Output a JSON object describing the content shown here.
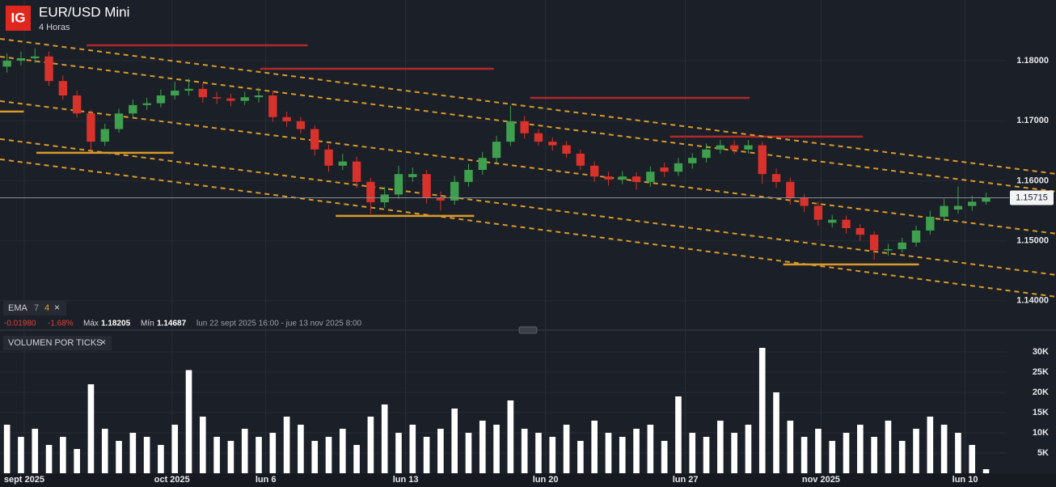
{
  "header": {
    "logo": "IG",
    "title": "EUR/USD Mini",
    "interval": "4 Horas"
  },
  "indicator": {
    "name": "EMA",
    "param1": "7",
    "param2": "4",
    "close": "×"
  },
  "stats": {
    "change": "-0.01980",
    "change_pct": "-1.68%",
    "max_label": "Máx",
    "max": "1.18205",
    "min_label": "Mín",
    "min": "1.14687",
    "range": "lun 22 sept 2025 16:00 - jue 13 nov 2025 8:00"
  },
  "volume_panel": {
    "title": "VOLUMEN POR TICKS",
    "close": "×"
  },
  "chart_data": [
    {
      "type": "candlestick",
      "x": [
        0,
        1,
        2,
        3,
        4,
        5,
        6,
        7,
        8,
        9,
        10,
        11,
        12,
        13,
        14,
        15,
        16,
        17,
        18,
        19,
        20,
        21,
        22,
        23,
        24,
        25,
        26,
        27,
        28,
        29,
        30,
        31,
        32,
        33,
        34,
        35,
        36,
        37,
        38,
        39,
        40,
        41,
        42,
        43,
        44,
        45,
        46,
        47,
        48,
        49,
        50,
        51,
        52,
        53,
        54,
        55,
        56,
        57,
        58,
        59,
        60,
        61,
        62,
        63,
        64,
        65,
        66,
        67,
        68,
        69,
        70
      ],
      "open": [
        1.179,
        1.18,
        1.1804,
        1.1807,
        1.1766,
        1.1742,
        1.1712,
        1.1665,
        1.1686,
        1.1712,
        1.1726,
        1.1729,
        1.1742,
        1.175,
        1.1753,
        1.1739,
        1.1737,
        1.1733,
        1.1739,
        1.1742,
        1.1706,
        1.1699,
        1.1686,
        1.1652,
        1.1625,
        1.1632,
        1.1598,
        1.1564,
        1.1577,
        1.1606,
        1.1611,
        1.1571,
        1.1567,
        1.1598,
        1.1618,
        1.1638,
        1.1665,
        1.1699,
        1.1679,
        1.1665,
        1.1659,
        1.1645,
        1.1625,
        1.1607,
        1.1602,
        1.1607,
        1.1598,
        1.1622,
        1.1615,
        1.1629,
        1.1638,
        1.1652,
        1.1659,
        1.1652,
        1.1659,
        1.1611,
        1.1598,
        1.1571,
        1.1558,
        1.153,
        1.1535,
        1.1521,
        1.151,
        1.1484,
        1.1486,
        1.1497,
        1.1517,
        1.154,
        1.1552,
        1.1558,
        1.1565
      ],
      "high": [
        1.1812,
        1.1815,
        1.18205,
        1.1815,
        1.1775,
        1.175,
        1.1718,
        1.1695,
        1.172,
        1.1735,
        1.1738,
        1.1752,
        1.1765,
        1.177,
        1.1762,
        1.1748,
        1.1745,
        1.1748,
        1.1755,
        1.175,
        1.1715,
        1.1706,
        1.1692,
        1.166,
        1.1645,
        1.164,
        1.1605,
        1.159,
        1.1625,
        1.1622,
        1.1618,
        1.1582,
        1.1608,
        1.1628,
        1.1648,
        1.1675,
        1.1725,
        1.1708,
        1.1686,
        1.1672,
        1.1666,
        1.1652,
        1.1632,
        1.1615,
        1.1616,
        1.1614,
        1.1624,
        1.163,
        1.1638,
        1.1646,
        1.1662,
        1.1668,
        1.1667,
        1.1668,
        1.1665,
        1.162,
        1.1605,
        1.1578,
        1.1565,
        1.1543,
        1.1542,
        1.1528,
        1.1516,
        1.1495,
        1.1505,
        1.1525,
        1.155,
        1.157,
        1.159,
        1.1575,
        1.158
      ],
      "low": [
        1.178,
        1.1792,
        1.1796,
        1.1758,
        1.1735,
        1.1705,
        1.165,
        1.1658,
        1.168,
        1.1705,
        1.1718,
        1.1722,
        1.1735,
        1.1742,
        1.173,
        1.1728,
        1.1724,
        1.1726,
        1.173,
        1.1698,
        1.169,
        1.1678,
        1.1642,
        1.1615,
        1.1618,
        1.1588,
        1.1545,
        1.1555,
        1.157,
        1.1598,
        1.1562,
        1.155,
        1.156,
        1.159,
        1.161,
        1.163,
        1.1658,
        1.167,
        1.1658,
        1.165,
        1.1638,
        1.1618,
        1.1598,
        1.1592,
        1.1594,
        1.1585,
        1.159,
        1.1606,
        1.1608,
        1.162,
        1.163,
        1.1645,
        1.1644,
        1.1645,
        1.1595,
        1.1588,
        1.156,
        1.1548,
        1.1525,
        1.1522,
        1.1512,
        1.15,
        1.14687,
        1.1475,
        1.148,
        1.149,
        1.151,
        1.1532,
        1.1545,
        1.155,
        1.156
      ],
      "close": [
        1.18,
        1.1804,
        1.1807,
        1.1766,
        1.1742,
        1.1712,
        1.1665,
        1.1686,
        1.1712,
        1.1726,
        1.1729,
        1.1742,
        1.175,
        1.1753,
        1.1739,
        1.1737,
        1.1733,
        1.1739,
        1.1742,
        1.1706,
        1.1699,
        1.1686,
        1.1652,
        1.1625,
        1.1632,
        1.1598,
        1.1564,
        1.1577,
        1.1611,
        1.1611,
        1.1571,
        1.1567,
        1.1598,
        1.1618,
        1.1638,
        1.1665,
        1.1699,
        1.1679,
        1.1665,
        1.1659,
        1.1645,
        1.1625,
        1.1607,
        1.1602,
        1.1607,
        1.1598,
        1.1615,
        1.1615,
        1.1629,
        1.1638,
        1.1652,
        1.1659,
        1.1652,
        1.1659,
        1.1611,
        1.1598,
        1.1571,
        1.1558,
        1.1535,
        1.1535,
        1.1521,
        1.151,
        1.1484,
        1.1486,
        1.1497,
        1.1517,
        1.154,
        1.1558,
        1.1558,
        1.1565,
        1.1572
      ],
      "up_color": "#3ea04f",
      "down_color": "#d8322c",
      "xlim": [
        -0.5,
        75
      ],
      "ylim": [
        1.1362,
        1.1901
      ],
      "yticks": [
        {
          "value": 1.14,
          "label": "1.14000"
        },
        {
          "value": 1.15,
          "label": "1.15000"
        },
        {
          "value": 1.16,
          "label": "1.16000"
        },
        {
          "value": 1.17,
          "label": "1.17000"
        },
        {
          "value": 1.18,
          "label": "1.18000"
        }
      ],
      "grid": true,
      "last_price": {
        "value": 1.15715,
        "label": "1.15715"
      },
      "lines": [
        {
          "color": "#b0282c",
          "dash": false,
          "x": [
            5.7,
            21.5
          ],
          "y": [
            1.18256,
            1.18256
          ]
        },
        {
          "color": "#b0282c",
          "dash": false,
          "x": [
            18.1,
            34.8
          ],
          "y": [
            1.17865,
            1.17865
          ]
        },
        {
          "color": "#b0282c",
          "dash": false,
          "x": [
            37.4,
            53.1
          ],
          "y": [
            1.1738,
            1.1738
          ]
        },
        {
          "color": "#b0282c",
          "dash": false,
          "x": [
            47.4,
            61.2
          ],
          "y": [
            1.16734,
            1.16734
          ]
        },
        {
          "color": "#d99a2b",
          "dash": false,
          "x": [
            -0.5,
            1.2
          ],
          "y": [
            1.17152,
            1.17152
          ]
        },
        {
          "color": "#d99a2b",
          "dash": false,
          "x": [
            2.1,
            11.9
          ],
          "y": [
            1.16465,
            1.16465
          ]
        },
        {
          "color": "#d99a2b",
          "dash": false,
          "x": [
            23.5,
            33.4
          ],
          "y": [
            1.15414,
            1.15414
          ]
        },
        {
          "color": "#d99a2b",
          "dash": false,
          "x": [
            55.5,
            65.2
          ],
          "y": [
            1.14606,
            1.14606
          ]
        },
        {
          "color": "#d99a2b",
          "dash": true,
          "x": [
            -0.5,
            75
          ],
          "y": [
            1.18364,
            1.16114
          ]
        },
        {
          "color": "#d99a2b",
          "dash": true,
          "x": [
            -0.5,
            75
          ],
          "y": [
            1.18067,
            1.15818
          ]
        },
        {
          "color": "#d99a2b",
          "dash": true,
          "x": [
            -0.5,
            75
          ],
          "y": [
            1.17327,
            1.15118
          ]
        },
        {
          "color": "#d99a2b",
          "dash": true,
          "x": [
            -0.5,
            75
          ],
          "y": [
            1.16694,
            1.14431
          ]
        },
        {
          "color": "#d99a2b",
          "dash": true,
          "x": [
            -0.5,
            75
          ],
          "y": [
            1.16357,
            1.14067
          ]
        }
      ]
    },
    {
      "type": "bar",
      "x": [
        0,
        1,
        2,
        3,
        4,
        5,
        6,
        7,
        8,
        9,
        10,
        11,
        12,
        13,
        14,
        15,
        16,
        17,
        18,
        19,
        20,
        21,
        22,
        23,
        24,
        25,
        26,
        27,
        28,
        29,
        30,
        31,
        32,
        33,
        34,
        35,
        36,
        37,
        38,
        39,
        40,
        41,
        42,
        43,
        44,
        45,
        46,
        47,
        48,
        49,
        50,
        51,
        52,
        53,
        54,
        55,
        56,
        57,
        58,
        59,
        60,
        61,
        62,
        63,
        64,
        65,
        66,
        67,
        68,
        69,
        70
      ],
      "values": [
        12000,
        9000,
        11000,
        7000,
        9000,
        6000,
        22000,
        11000,
        8000,
        10000,
        9000,
        7000,
        12000,
        25500,
        14000,
        9000,
        8000,
        11000,
        9000,
        10000,
        14000,
        12000,
        8000,
        9000,
        11000,
        7000,
        14000,
        17000,
        10000,
        12000,
        9000,
        11000,
        16000,
        10000,
        13000,
        12000,
        18000,
        11000,
        10000,
        9000,
        12000,
        8000,
        13000,
        10000,
        9000,
        11000,
        12000,
        8000,
        19000,
        10000,
        9000,
        13000,
        10000,
        12000,
        31000,
        20000,
        13000,
        9000,
        11000,
        8000,
        10000,
        12000,
        9000,
        13000,
        8000,
        11000,
        14000,
        12000,
        10000,
        7000,
        1000
      ],
      "color": "#ffffff",
      "xlim": [
        -0.5,
        75
      ],
      "ylim": [
        0,
        34000
      ],
      "yticks": [
        {
          "value": 5000,
          "label": "5K"
        },
        {
          "value": 10000,
          "label": "10K"
        },
        {
          "value": 15000,
          "label": "15K"
        },
        {
          "value": 20000,
          "label": "20K"
        },
        {
          "value": 25000,
          "label": "25K"
        },
        {
          "value": 30000,
          "label": "30K"
        }
      ],
      "xticks": [
        {
          "value": 1.23,
          "label": "sept 2025"
        },
        {
          "value": 11.8,
          "label": "oct 2025"
        },
        {
          "value": 18.5,
          "label": "lun 6"
        },
        {
          "value": 28.5,
          "label": "lun 13"
        },
        {
          "value": 38.5,
          "label": "lun 20"
        },
        {
          "value": 48.5,
          "label": "lun 27"
        },
        {
          "value": 58.2,
          "label": "nov 2025"
        },
        {
          "value": 68.5,
          "label": "lun 10"
        }
      ]
    }
  ]
}
